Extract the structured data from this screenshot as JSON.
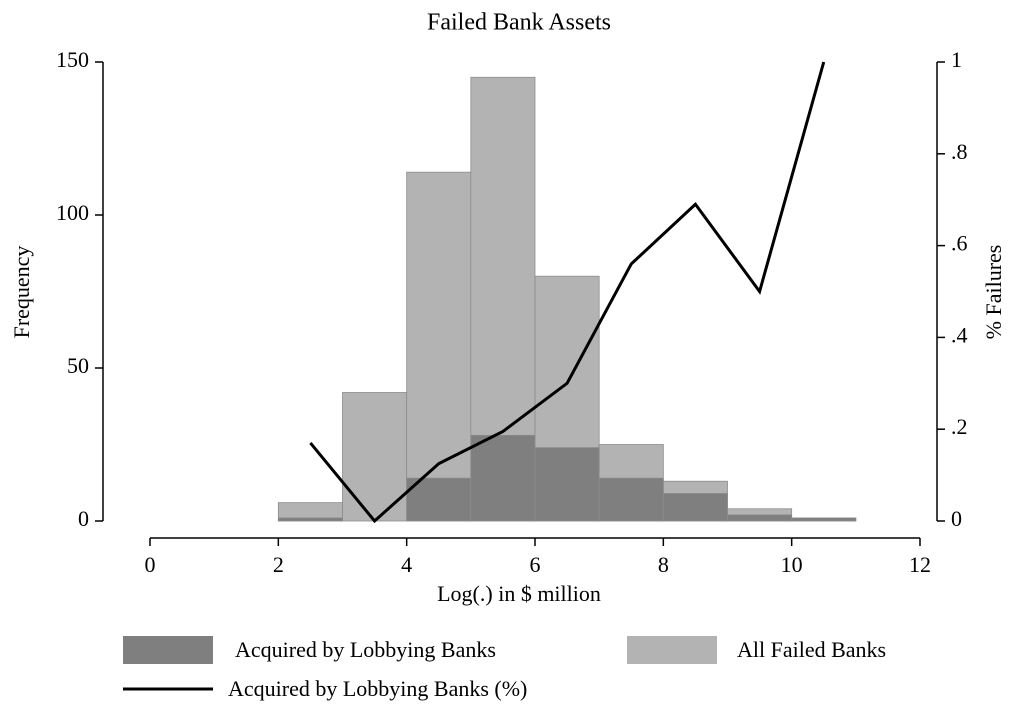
{
  "chart_data": {
    "type": "histogram",
    "title": "Failed Bank Assets",
    "xlabel": "Log(.) in $ million",
    "ylabel": "Frequency",
    "y2label": "% Failures",
    "bins": [
      2,
      3,
      4,
      5,
      6,
      7,
      8,
      9,
      10,
      11
    ],
    "series": [
      {
        "name": "All Failed Banks",
        "color": "#b3b3b3",
        "values": [
          6,
          42,
          114,
          145,
          80,
          25,
          13,
          4,
          1
        ]
      },
      {
        "name": "Acquired by Lobbying Banks",
        "color": "#7f7f7f",
        "values": [
          1,
          0,
          14,
          28,
          24,
          14,
          9,
          2,
          1
        ]
      },
      {
        "name": "Acquired by Lobbying Banks (%)",
        "type": "line",
        "axis": "y2",
        "color": "#000000",
        "x": [
          2.5,
          3.5,
          4.5,
          5.5,
          6.5,
          7.5,
          8.5,
          9.5,
          10.5
        ],
        "values": [
          0.17,
          0,
          0.125,
          0.195,
          0.3,
          0.56,
          0.69,
          0.5,
          1
        ]
      }
    ],
    "xlim": [
      0,
      12
    ],
    "xticks": [
      0,
      2,
      4,
      6,
      8,
      10,
      12
    ],
    "ylim": [
      0,
      150
    ],
    "yticks": [
      0,
      50,
      100,
      150
    ],
    "y2lim": [
      0,
      1
    ],
    "y2ticks": [
      0,
      {
        "value": 0.2,
        "label": ".2"
      },
      {
        "value": 0.4,
        "label": ".4"
      },
      {
        "value": 0.6,
        "label": ".6"
      },
      {
        "value": 0.8,
        "label": ".8"
      },
      1
    ],
    "legend": "bottom"
  }
}
